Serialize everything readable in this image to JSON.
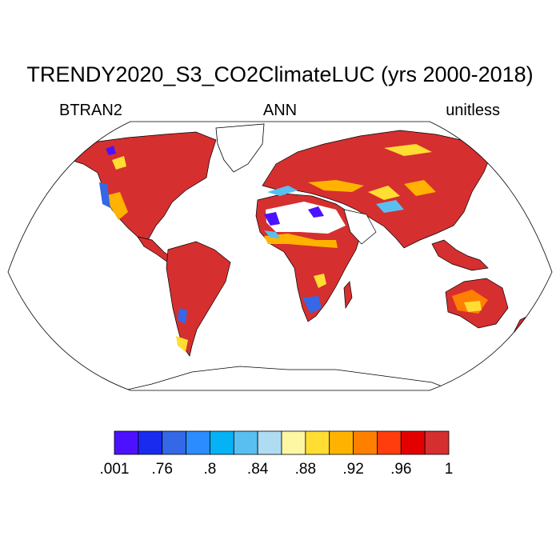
{
  "title": "TRENDY2020_S3_CO2ClimateLUC (yrs 2000-2018)",
  "subtitle_left": "BTRAN2",
  "subtitle_center": "ANN",
  "subtitle_right": "unitless",
  "colors": {
    "map_outline": "#000000",
    "missing": "#ffffff",
    "dominant_land": "#d62f2f"
  },
  "colorbar": {
    "colors": [
      "#4c12ff",
      "#1a2bf0",
      "#3568e6",
      "#2a8cff",
      "#04b2f5",
      "#59bff0",
      "#b0dcf3",
      "#fdf6a3",
      "#ffdd33",
      "#ffb300",
      "#ff8000",
      "#ff3d0d",
      "#e30000",
      "#d62f2f"
    ],
    "labels": [
      ".001",
      ".76",
      ".8",
      ".84",
      ".88",
      ".92",
      ".96",
      "1"
    ]
  }
}
